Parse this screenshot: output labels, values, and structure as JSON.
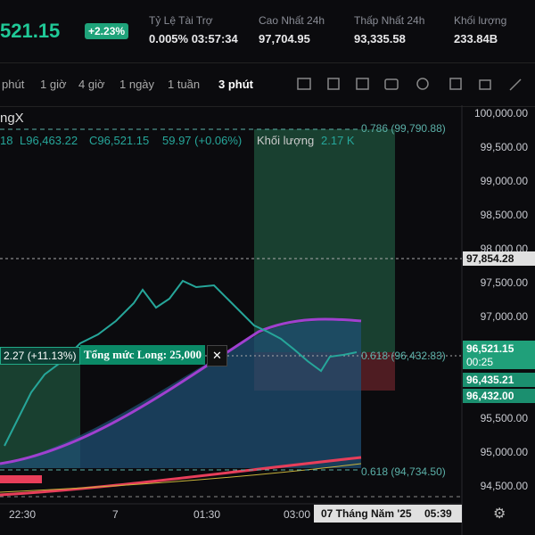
{
  "header": {
    "price": "521.15",
    "change": "+2.23%",
    "stats": [
      {
        "label": "Tỷ Lệ Tài Trợ",
        "value": "0.005% 03:57:34"
      },
      {
        "label": "Cao Nhất 24h",
        "value": "97,704.95"
      },
      {
        "label": "Thấp Nhất 24h",
        "value": "93,335.58"
      },
      {
        "label": "Khối lượng",
        "value": "233.84B"
      }
    ]
  },
  "toolbar": {
    "intervals": [
      "phút",
      "1 giờ",
      "4 giờ",
      "1 ngày",
      "1 tuần"
    ],
    "selected": "3 phút"
  },
  "legend": {
    "symbol": "ngX",
    "open": "18",
    "low": "L96,463.22",
    "close": "C96,521.15",
    "change": "59.97 (+0.06%)",
    "volume_label": "Khối lượng",
    "volume": "2.17 K"
  },
  "annotations": {
    "fib_top": "0.786 (99,790.88)",
    "fib_mid": "0.618 (96,432.83)",
    "fib_low": "0.618 (94,734.50)",
    "range": "2.27 (+11.13%)",
    "long_total": "Tổng mức Long: 25,000"
  },
  "price_axis": [
    "100,000.00",
    "99,500.00",
    "99,000.00",
    "98,500.00",
    "98,000.00",
    "97,500.00",
    "97,000.00",
    "95,500.00",
    "95,000.00",
    "94,500.00"
  ],
  "price_tags": {
    "high": "97,854.28",
    "last": "96,521.15",
    "countdown": "00:25",
    "tag2": "96,435.21",
    "tag3": "96,432.00"
  },
  "time_axis": [
    "22:30",
    "7",
    "01:30",
    "03:00"
  ],
  "crosshair": {
    "date": "07 Tháng Năm '25",
    "time": "05:39"
  }
}
